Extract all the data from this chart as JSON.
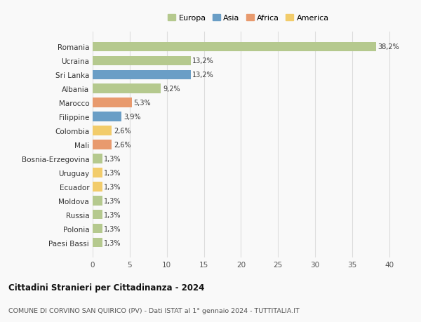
{
  "countries": [
    "Romania",
    "Ucraina",
    "Sri Lanka",
    "Albania",
    "Marocco",
    "Filippine",
    "Colombia",
    "Mali",
    "Bosnia-Erzegovina",
    "Uruguay",
    "Ecuador",
    "Moldova",
    "Russia",
    "Polonia",
    "Paesi Bassi"
  ],
  "values": [
    38.2,
    13.2,
    13.2,
    9.2,
    5.3,
    3.9,
    2.6,
    2.6,
    1.3,
    1.3,
    1.3,
    1.3,
    1.3,
    1.3,
    1.3
  ],
  "labels": [
    "38,2%",
    "13,2%",
    "13,2%",
    "9,2%",
    "5,3%",
    "3,9%",
    "2,6%",
    "2,6%",
    "1,3%",
    "1,3%",
    "1,3%",
    "1,3%",
    "1,3%",
    "1,3%",
    "1,3%"
  ],
  "continents": [
    "Europa",
    "Europa",
    "Asia",
    "Europa",
    "Africa",
    "Asia",
    "America",
    "Africa",
    "Europa",
    "America",
    "America",
    "Europa",
    "Europa",
    "Europa",
    "Europa"
  ],
  "continent_colors": {
    "Europa": "#b5c98e",
    "Asia": "#6a9ec6",
    "Africa": "#e89a6e",
    "America": "#f2cc6b"
  },
  "legend_order": [
    "Europa",
    "Asia",
    "Africa",
    "America"
  ],
  "title1": "Cittadini Stranieri per Cittadinanza - 2024",
  "title2": "COMUNE DI CORVINO SAN QUIRICO (PV) - Dati ISTAT al 1° gennaio 2024 - TUTTITALIA.IT",
  "xlim": [
    0,
    42
  ],
  "xticks": [
    0,
    5,
    10,
    15,
    20,
    25,
    30,
    35,
    40
  ],
  "background_color": "#f9f9f9",
  "grid_color": "#dddddd"
}
